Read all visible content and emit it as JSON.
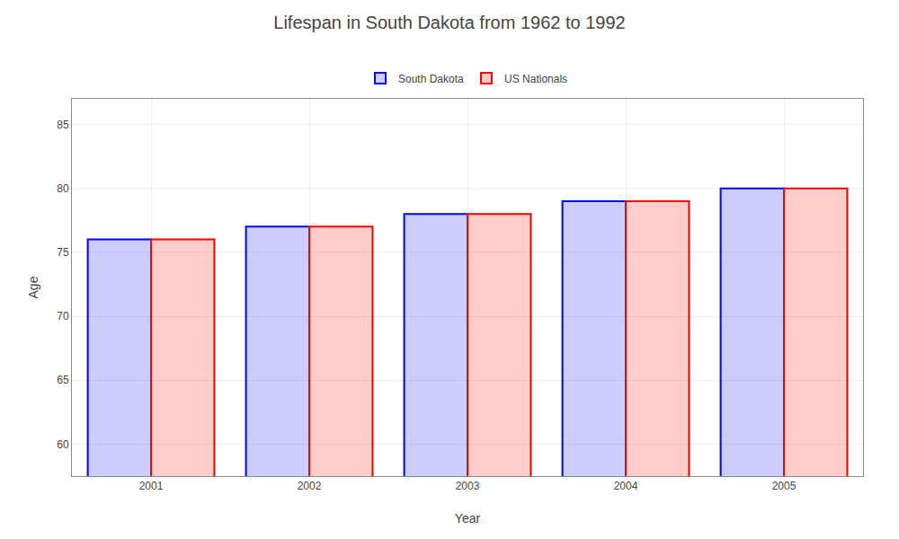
{
  "chart_data": {
    "type": "bar",
    "title": "Lifespan in South Dakota from 1962 to 1992",
    "x_label": "Year",
    "y_label": "Age",
    "categories": [
      "2001",
      "2002",
      "2003",
      "2004",
      "2005"
    ],
    "series": [
      {
        "name": "South Dakota",
        "color": "#0000ff",
        "values": [
          76,
          77,
          78,
          79,
          80
        ]
      },
      {
        "name": "US Nationals",
        "color": "#ff0000",
        "values": [
          76,
          77,
          78,
          79,
          80
        ]
      }
    ],
    "ylim": [
      57.5,
      87
    ],
    "yticks": [
      60,
      65,
      70,
      75,
      80,
      85
    ],
    "grid": true,
    "legend": "upper center"
  }
}
